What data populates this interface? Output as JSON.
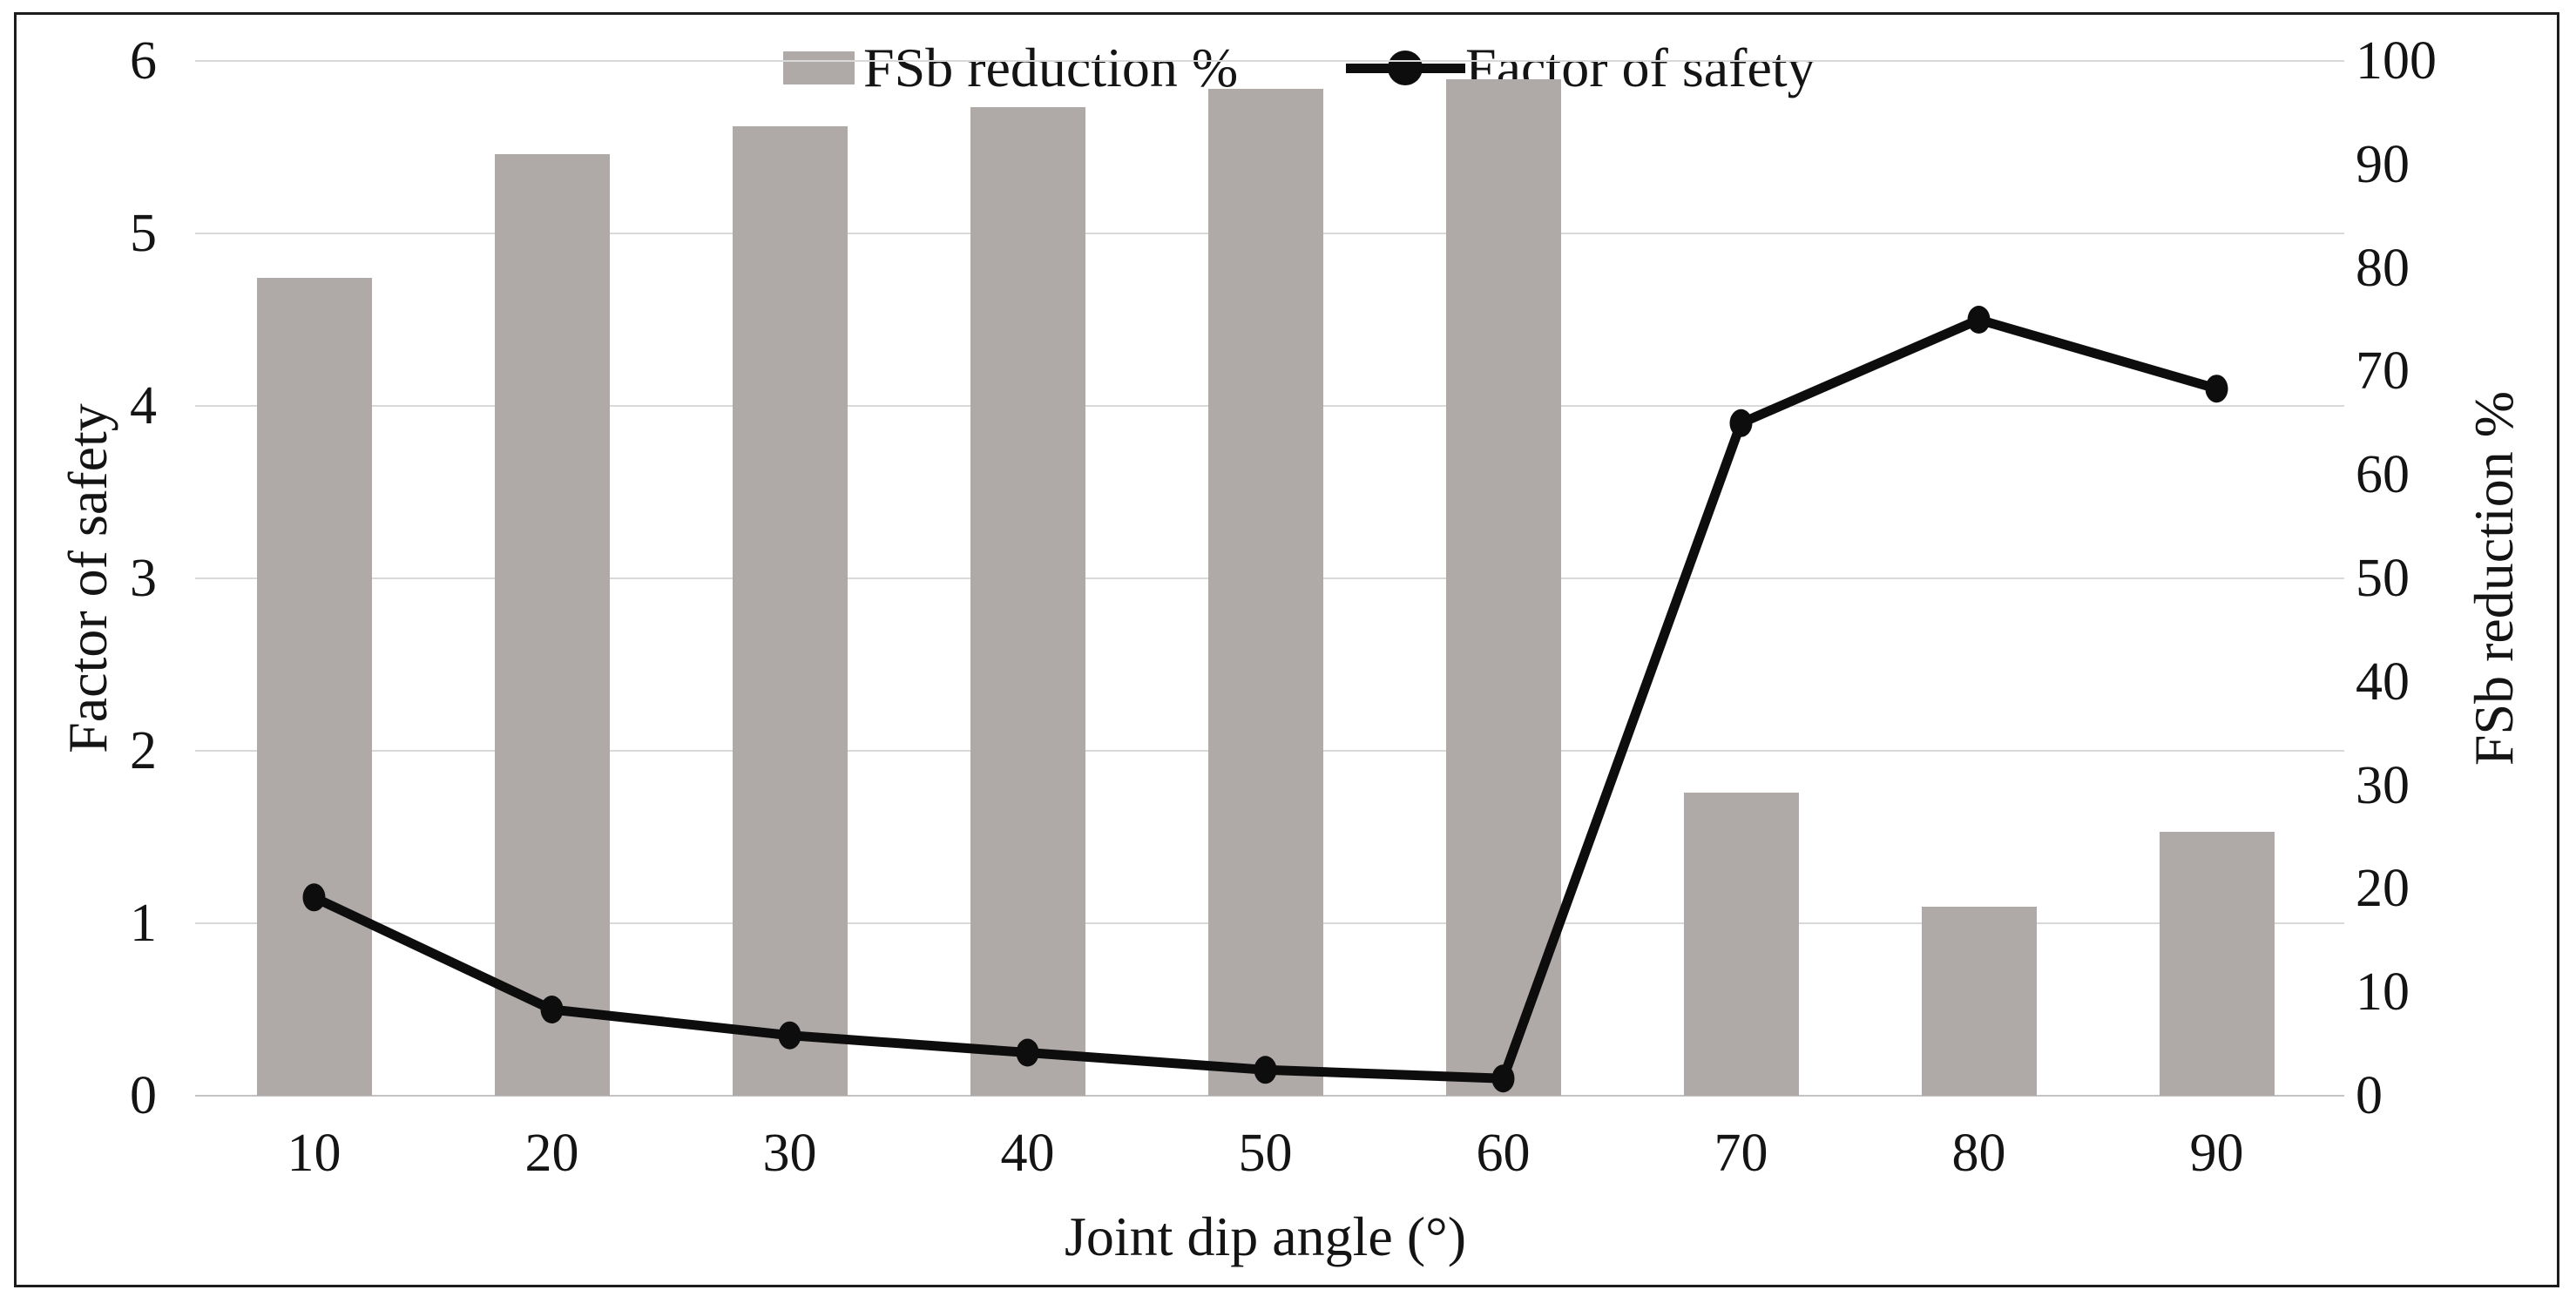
{
  "chart_data": {
    "type": "bar",
    "subtype": "combo-bar-line-dual-axis",
    "title": "",
    "xlabel": "Joint dip angle (°)",
    "ylabel_left": "Factor of safety",
    "ylabel_right": "FSb reduction %",
    "categories": [
      "10",
      "20",
      "30",
      "40",
      "50",
      "60",
      "70",
      "80",
      "90"
    ],
    "series": [
      {
        "name": "FSb reduction %",
        "type": "bar",
        "axis": "right",
        "values": [
          79,
          91,
          93.7,
          95.5,
          97.3,
          98.2,
          29.3,
          18.3,
          25.5
        ]
      },
      {
        "name": "Factor of safety",
        "type": "line",
        "axis": "left",
        "values": [
          1.15,
          0.5,
          0.35,
          0.25,
          0.15,
          0.1,
          3.9,
          4.5,
          4.1
        ]
      }
    ],
    "ylim_left": [
      0,
      6
    ],
    "ylim_right": [
      0,
      100
    ],
    "left_tick_labels": [
      "0",
      "1",
      "2",
      "3",
      "4",
      "5",
      "6"
    ],
    "right_tick_labels": [
      "0",
      "10",
      "20",
      "30",
      "40",
      "50",
      "60",
      "70",
      "80",
      "90",
      "100"
    ],
    "grid": "horizontal gridlines at left-axis integers",
    "legend_position": "top-center"
  },
  "colors": {
    "bar_fill": "#afaaa8",
    "line_stroke": "#0d0d0d",
    "gridline": "#d9d9d9",
    "baseline": "#c4c4c4",
    "frame_border": "#1c1c1c",
    "text": "#141414",
    "background": "#ffffff"
  }
}
